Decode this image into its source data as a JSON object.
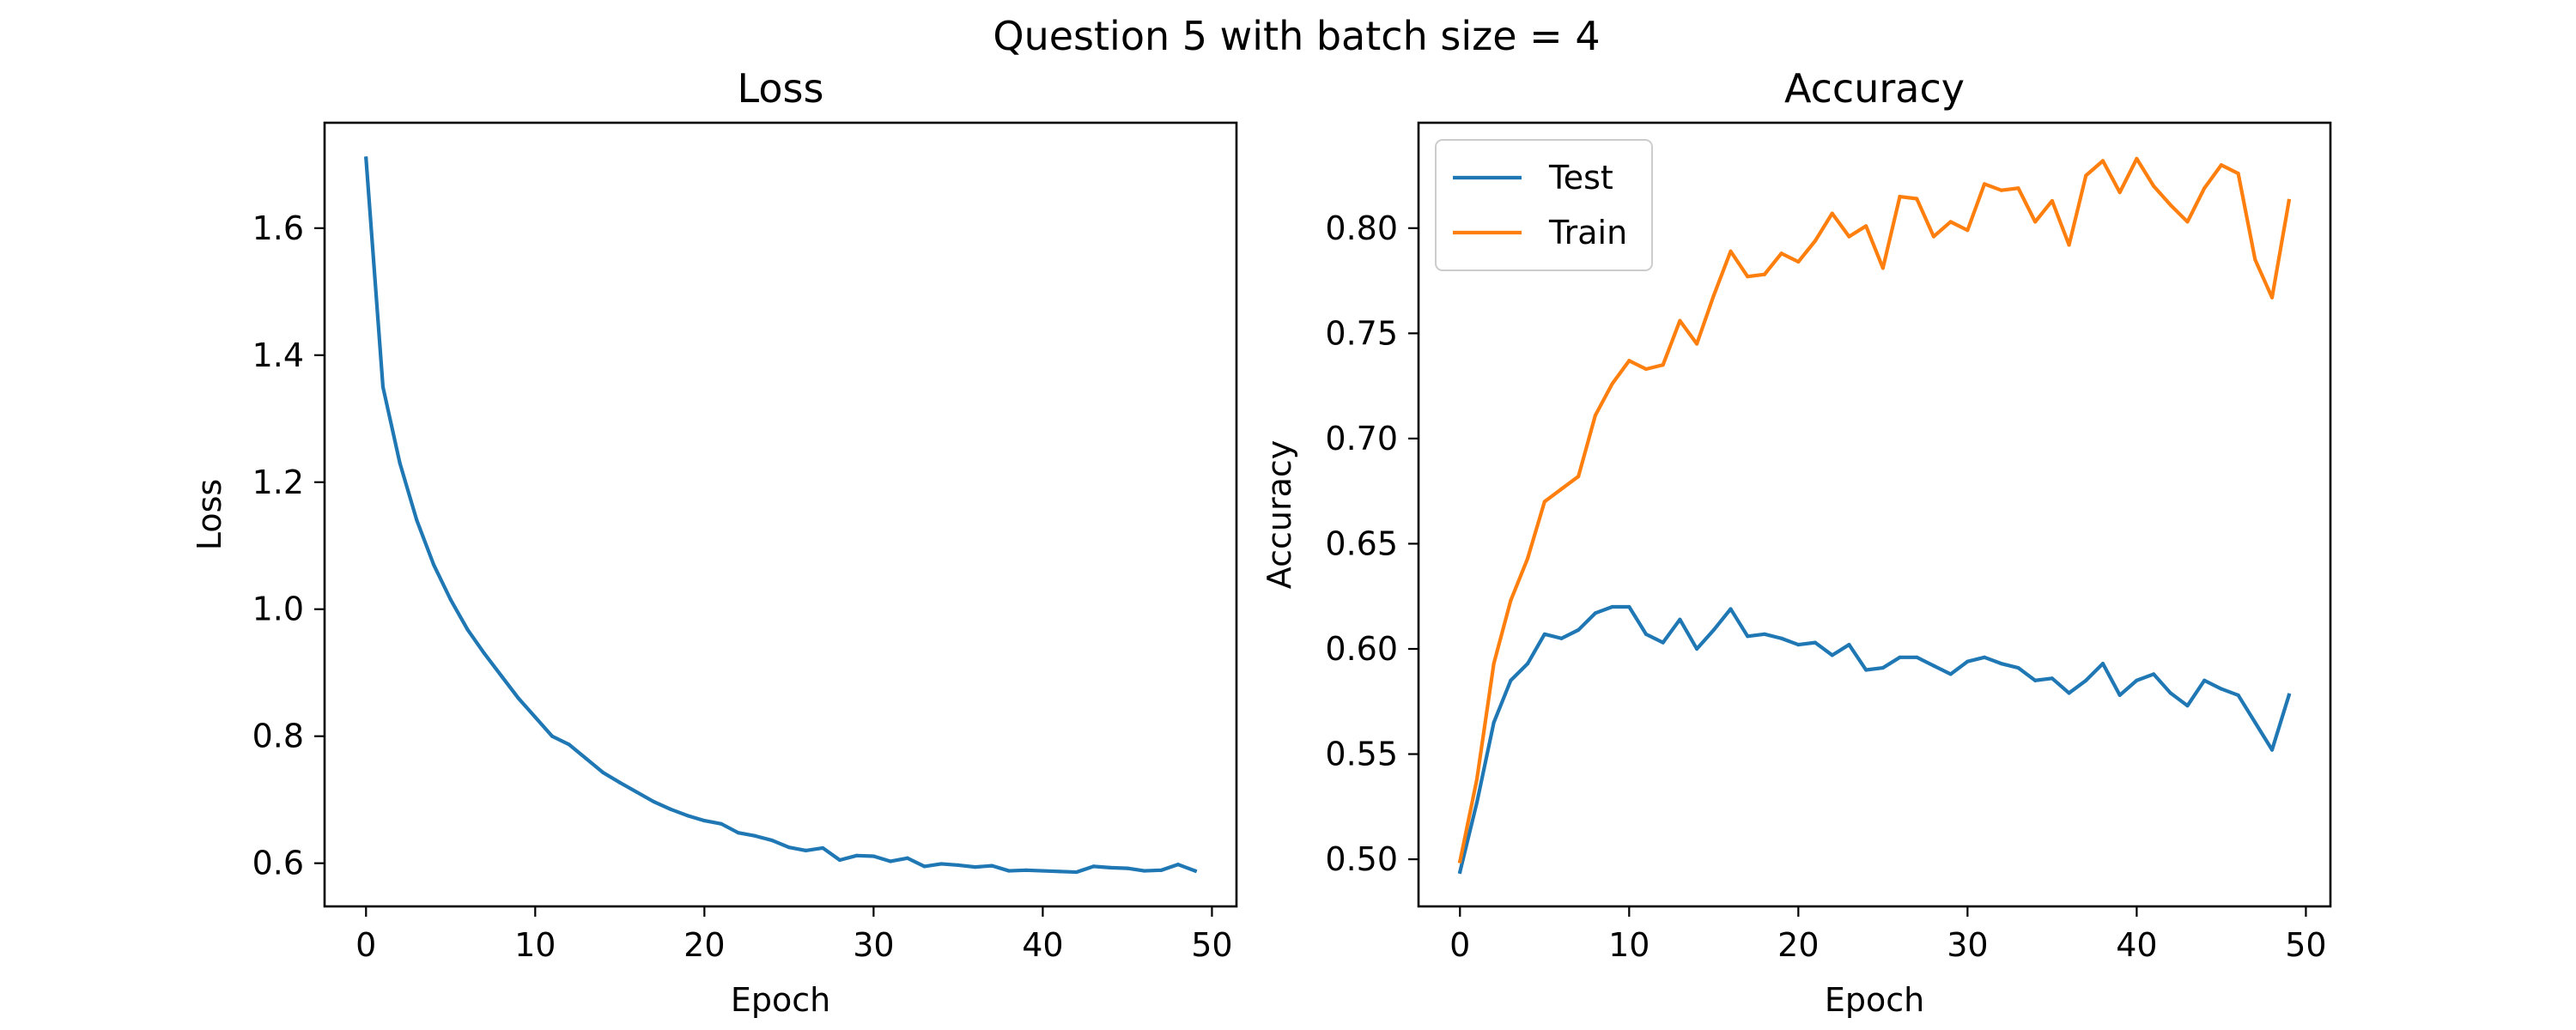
{
  "figure": {
    "suptitle": "Question 5 with batch size = 4"
  },
  "chart_data": [
    {
      "type": "line",
      "title": "Loss",
      "xlabel": "Epoch",
      "ylabel": "Loss",
      "xlim": [
        -2.45,
        51.45
      ],
      "ylim": [
        0.532,
        1.766
      ],
      "xticks": [
        0,
        10,
        20,
        30,
        40,
        50
      ],
      "xtick_labels": [
        "0",
        "10",
        "20",
        "30",
        "40",
        "50"
      ],
      "yticks": [
        0.6,
        0.8,
        1.0,
        1.2,
        1.4,
        1.6
      ],
      "ytick_labels": [
        "0.6",
        "0.8",
        "1.0",
        "1.2",
        "1.4",
        "1.6"
      ],
      "grid": false,
      "series": [
        {
          "color": "#1f77b4",
          "x": [
            0,
            1,
            2,
            3,
            4,
            5,
            6,
            7,
            8,
            9,
            10,
            11,
            12,
            13,
            14,
            15,
            16,
            17,
            18,
            19,
            20,
            21,
            22,
            23,
            24,
            25,
            26,
            27,
            28,
            29,
            30,
            31,
            32,
            33,
            34,
            35,
            36,
            37,
            38,
            39,
            40,
            41,
            42,
            43,
            44,
            45,
            46,
            47,
            48,
            49
          ],
          "y": [
            1.71,
            1.35,
            1.23,
            1.14,
            1.07,
            1.015,
            0.968,
            0.93,
            0.895,
            0.86,
            0.83,
            0.8,
            0.787,
            0.765,
            0.743,
            0.727,
            0.712,
            0.697,
            0.685,
            0.675,
            0.667,
            0.662,
            0.648,
            0.643,
            0.636,
            0.625,
            0.62,
            0.624,
            0.605,
            0.612,
            0.611,
            0.603,
            0.608,
            0.595,
            0.599,
            0.597,
            0.594,
            0.596,
            0.588,
            0.589,
            0.588,
            0.587,
            0.586,
            0.595,
            0.593,
            0.592,
            0.588,
            0.589,
            0.598,
            0.588
          ]
        }
      ]
    },
    {
      "type": "line",
      "title": "Accuracy",
      "xlabel": "Epoch",
      "ylabel": "Accuracy",
      "xlim": [
        -2.45,
        51.45
      ],
      "ylim": [
        0.4776,
        0.8501
      ],
      "xticks": [
        0,
        10,
        20,
        30,
        40,
        50
      ],
      "xtick_labels": [
        "0",
        "10",
        "20",
        "30",
        "40",
        "50"
      ],
      "yticks": [
        0.5,
        0.55,
        0.6,
        0.65,
        0.7,
        0.75,
        0.8
      ],
      "ytick_labels": [
        "0.50",
        "0.55",
        "0.60",
        "0.65",
        "0.70",
        "0.75",
        "0.80"
      ],
      "grid": false,
      "legend": {
        "location": "upper left"
      },
      "series": [
        {
          "name": "Test",
          "color": "#1f77b4",
          "x": [
            0,
            1,
            2,
            3,
            4,
            5,
            6,
            7,
            8,
            9,
            10,
            11,
            12,
            13,
            14,
            15,
            16,
            17,
            18,
            19,
            20,
            21,
            22,
            23,
            24,
            25,
            26,
            27,
            28,
            29,
            30,
            31,
            32,
            33,
            34,
            35,
            36,
            37,
            38,
            39,
            40,
            41,
            42,
            43,
            44,
            45,
            46,
            47,
            48,
            49
          ],
          "y": [
            0.494,
            0.527,
            0.565,
            0.585,
            0.593,
            0.607,
            0.605,
            0.609,
            0.617,
            0.62,
            0.62,
            0.607,
            0.603,
            0.614,
            0.6,
            0.609,
            0.619,
            0.606,
            0.607,
            0.605,
            0.602,
            0.603,
            0.597,
            0.602,
            0.59,
            0.591,
            0.596,
            0.596,
            0.592,
            0.588,
            0.594,
            0.596,
            0.593,
            0.591,
            0.585,
            0.586,
            0.579,
            0.585,
            0.593,
            0.578,
            0.585,
            0.588,
            0.579,
            0.573,
            0.585,
            0.581,
            0.578,
            0.565,
            0.552,
            0.578
          ]
        },
        {
          "name": "Train",
          "color": "#ff7f0e",
          "x": [
            0,
            1,
            2,
            3,
            4,
            5,
            6,
            7,
            8,
            9,
            10,
            11,
            12,
            13,
            14,
            15,
            16,
            17,
            18,
            19,
            20,
            21,
            22,
            23,
            24,
            25,
            26,
            27,
            28,
            29,
            30,
            31,
            32,
            33,
            34,
            35,
            36,
            37,
            38,
            39,
            40,
            41,
            42,
            43,
            44,
            45,
            46,
            47,
            48,
            49
          ],
          "y": [
            0.499,
            0.538,
            0.593,
            0.623,
            0.643,
            0.67,
            0.676,
            0.682,
            0.711,
            0.726,
            0.737,
            0.733,
            0.735,
            0.756,
            0.745,
            0.768,
            0.789,
            0.777,
            0.778,
            0.788,
            0.784,
            0.794,
            0.807,
            0.796,
            0.801,
            0.781,
            0.815,
            0.814,
            0.796,
            0.803,
            0.799,
            0.821,
            0.818,
            0.819,
            0.803,
            0.813,
            0.792,
            0.825,
            0.832,
            0.817,
            0.833,
            0.82,
            0.811,
            0.803,
            0.819,
            0.83,
            0.826,
            0.785,
            0.767,
            0.813
          ]
        }
      ]
    }
  ]
}
